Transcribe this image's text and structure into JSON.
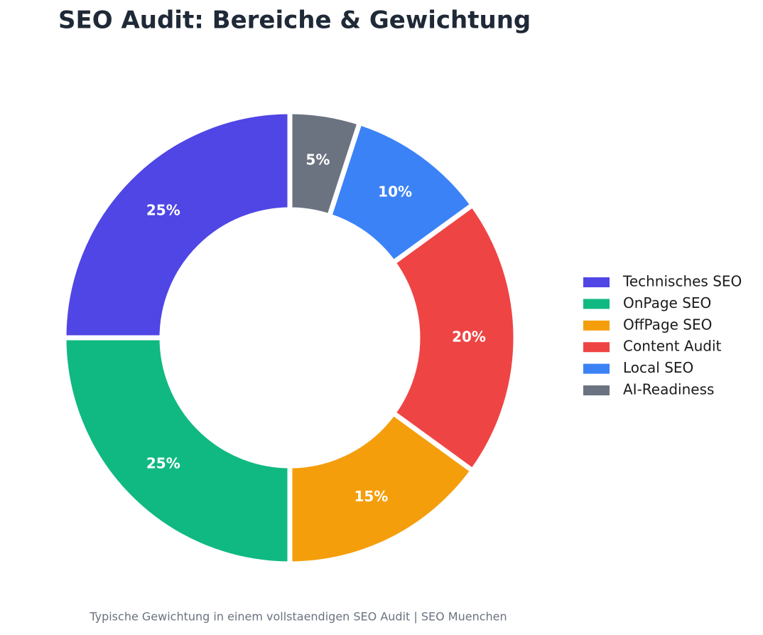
{
  "chart_data": {
    "type": "donut",
    "title": "SEO Audit: Bereiche & Gewichtung",
    "footnote": "Typische Gewichtung in einem vollstaendigen SEO Audit | SEO Muenchen",
    "categories": [
      "Technisches SEO",
      "OnPage SEO",
      "OffPage SEO",
      "Content Audit",
      "Local SEO",
      "AI-Readiness"
    ],
    "values": [
      25,
      25,
      15,
      20,
      10,
      5
    ],
    "value_labels": [
      "25%",
      "25%",
      "15%",
      "20%",
      "10%",
      "5%"
    ],
    "colors": [
      "#4f46e5",
      "#10b981",
      "#f59e0b",
      "#ef4444",
      "#3b82f6",
      "#6b7280"
    ],
    "legend": "right"
  }
}
